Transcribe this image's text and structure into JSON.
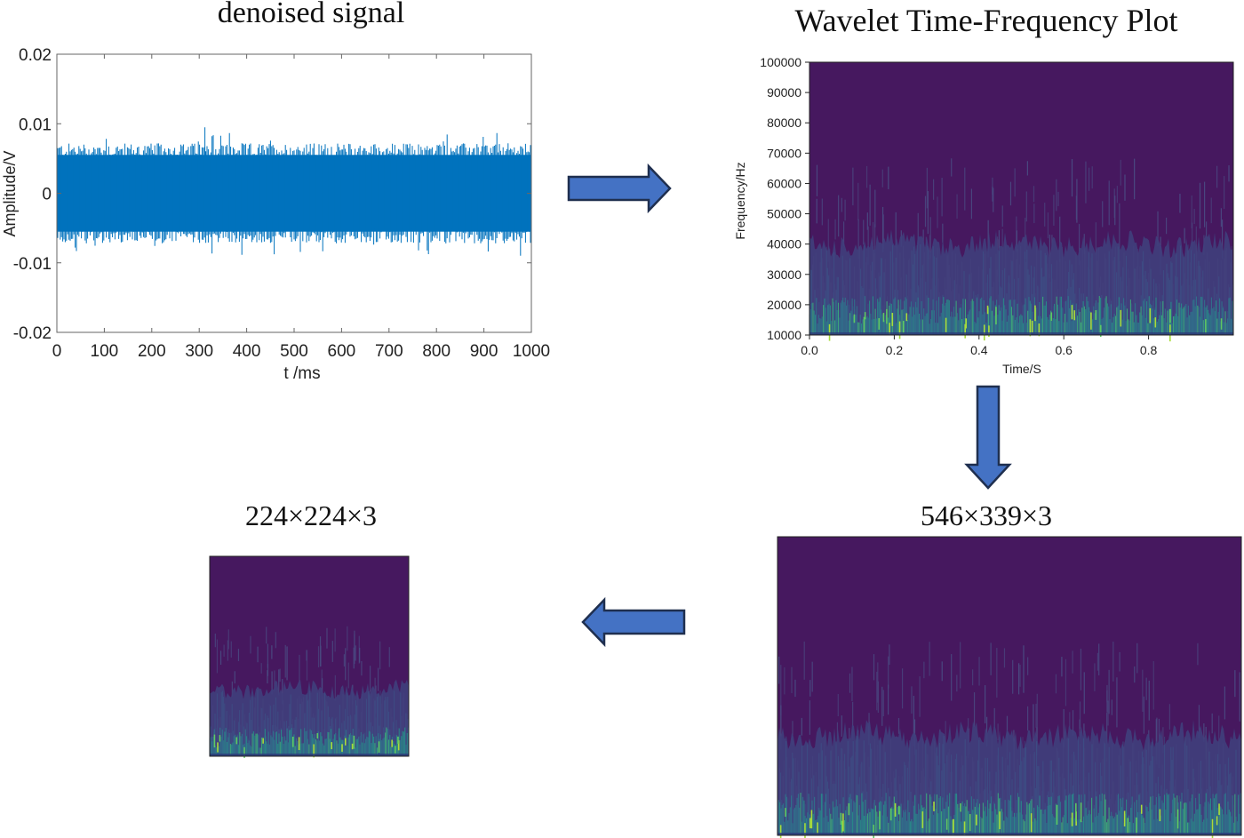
{
  "titles": {
    "signal": "denoised signal",
    "wavelet": "Wavelet Time-Frequency Plot",
    "resized_large": "546×339×3",
    "resized_small": "224×224×3"
  },
  "signal_plot": {
    "type": "line",
    "xlabel": "t /ms",
    "ylabel": "Amplitude/V",
    "xlim": [
      0,
      1000
    ],
    "ylim": [
      -0.02,
      0.02
    ],
    "xticks": [
      "0",
      "100",
      "200",
      "300",
      "400",
      "500",
      "600",
      "700",
      "800",
      "900",
      "1000"
    ],
    "yticks": [
      "0.02",
      "0.01",
      "0",
      "-0.01",
      "-0.02"
    ],
    "envelope_amplitude": 0.006,
    "peak_amplitude": 0.0095,
    "line_color": "#0072BD"
  },
  "wavelet_plot": {
    "type": "heatmap",
    "xlabel": "Time/S",
    "ylabel": "Frequency/Hz",
    "xlim": [
      0,
      1.0
    ],
    "ylim": [
      10000,
      100000
    ],
    "xticks": [
      "0.0",
      "0.2",
      "0.4",
      "0.6",
      "0.8"
    ],
    "yticks": [
      "100000",
      "90000",
      "80000",
      "70000",
      "60000",
      "50000",
      "40000",
      "30000",
      "20000",
      "10000"
    ],
    "background_color": "#46185f",
    "energy_band_upper_hz": 40000
  },
  "colors": {
    "arrow_fill": "#4472C4",
    "arrow_stroke": "#1f2f4f"
  }
}
